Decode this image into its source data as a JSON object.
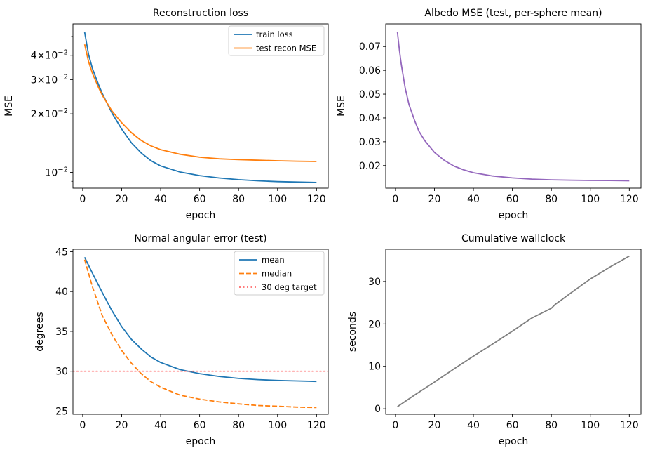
{
  "chart_data": [
    {
      "type": "line",
      "title": "Reconstruction loss",
      "xlabel": "epoch",
      "ylabel": "MSE",
      "yscale": "log",
      "xlim": [
        -5,
        126
      ],
      "ylim": [
        0.0083,
        0.058
      ],
      "xticks": [
        0,
        20,
        40,
        60,
        80,
        100,
        120
      ],
      "yticks": [
        0.01,
        0.02,
        0.03,
        0.04
      ],
      "ytick_labels": [
        "10^{-2}",
        "2×10^{-2}",
        "3×10^{-2}",
        "4×10^{-2}"
      ],
      "legend": "top-right",
      "series": [
        {
          "name": "train loss",
          "color": "#1f77b4",
          "style": "solid",
          "x": [
            1,
            3,
            5,
            8,
            10,
            15,
            20,
            25,
            30,
            35,
            40,
            50,
            60,
            70,
            80,
            90,
            100,
            110,
            120
          ],
          "y": [
            0.0525,
            0.0405,
            0.0342,
            0.0285,
            0.0255,
            0.0202,
            0.0167,
            0.0142,
            0.0126,
            0.0115,
            0.0108,
            0.01005,
            0.00963,
            0.00936,
            0.00918,
            0.00906,
            0.00897,
            0.00892,
            0.00888
          ]
        },
        {
          "name": "test recon MSE",
          "color": "#ff7f0e",
          "style": "solid",
          "x": [
            1,
            3,
            5,
            8,
            10,
            15,
            20,
            25,
            30,
            35,
            40,
            50,
            60,
            70,
            80,
            90,
            100,
            110,
            120
          ],
          "y": [
            0.0455,
            0.0372,
            0.0323,
            0.0275,
            0.025,
            0.0207,
            0.018,
            0.016,
            0.0146,
            0.0137,
            0.0131,
            0.0124,
            0.01197,
            0.01175,
            0.01163,
            0.01155,
            0.01148,
            0.01142,
            0.01138
          ]
        }
      ]
    },
    {
      "type": "line",
      "title": "Albedo MSE (test, per-sphere mean)",
      "xlabel": "epoch",
      "ylabel": "MSE",
      "xlim": [
        -5,
        126
      ],
      "ylim": [
        0.0105,
        0.0795
      ],
      "xticks": [
        0,
        20,
        40,
        60,
        80,
        100,
        120
      ],
      "yticks": [
        0.02,
        0.03,
        0.04,
        0.05,
        0.06,
        0.07
      ],
      "ytick_labels": [
        "0.02",
        "0.03",
        "0.04",
        "0.05",
        "0.06",
        "0.07"
      ],
      "series": [
        {
          "color": "#9467bd",
          "style": "solid",
          "x": [
            1,
            2,
            3,
            5,
            7,
            10,
            12,
            15,
            20,
            25,
            30,
            35,
            40,
            50,
            60,
            70,
            80,
            90,
            100,
            110,
            120
          ],
          "y": [
            0.076,
            0.0685,
            0.0625,
            0.0525,
            0.0455,
            0.0385,
            0.0345,
            0.0305,
            0.0255,
            0.0222,
            0.0198,
            0.0182,
            0.017,
            0.0156,
            0.0148,
            0.0143,
            0.014,
            0.01385,
            0.01375,
            0.0137,
            0.0136
          ]
        }
      ]
    },
    {
      "type": "line",
      "title": "Normal angular error (test)",
      "xlabel": "epoch",
      "ylabel": "degrees",
      "xlim": [
        -5,
        126
      ],
      "ylim": [
        24.6,
        45.3
      ],
      "xticks": [
        0,
        20,
        40,
        60,
        80,
        100,
        120
      ],
      "yticks": [
        25,
        30,
        35,
        40,
        45
      ],
      "ytick_labels": [
        "25",
        "30",
        "35",
        "40",
        "45"
      ],
      "legend": "top-right",
      "series": [
        {
          "name": "mean",
          "color": "#1f77b4",
          "style": "solid",
          "x": [
            1,
            5,
            10,
            15,
            20,
            25,
            30,
            35,
            40,
            50,
            60,
            70,
            80,
            90,
            100,
            110,
            120
          ],
          "y": [
            44.3,
            42.3,
            39.9,
            37.6,
            35.6,
            34.0,
            32.8,
            31.8,
            31.1,
            30.2,
            29.7,
            29.35,
            29.1,
            28.95,
            28.85,
            28.78,
            28.72
          ]
        },
        {
          "name": "median",
          "color": "#ff7f0e",
          "style": "dashed",
          "x": [
            1,
            5,
            10,
            15,
            20,
            25,
            30,
            35,
            40,
            50,
            60,
            70,
            80,
            90,
            100,
            110,
            120
          ],
          "y": [
            44.0,
            40.6,
            37.0,
            34.6,
            32.6,
            31.0,
            29.7,
            28.7,
            28.0,
            27.0,
            26.5,
            26.15,
            25.9,
            25.7,
            25.6,
            25.5,
            25.45
          ]
        },
        {
          "name": "30 deg target",
          "color": "#ff6b6b",
          "style": "dotted",
          "x": [
            -5,
            126
          ],
          "y": [
            30,
            30
          ]
        }
      ]
    },
    {
      "type": "line",
      "title": "Cumulative wallclock",
      "xlabel": "epoch",
      "ylabel": "seconds",
      "xlim": [
        -5,
        126
      ],
      "ylim": [
        -1.3,
        37.6
      ],
      "xticks": [
        0,
        20,
        40,
        60,
        80,
        100,
        120
      ],
      "yticks": [
        0,
        10,
        20,
        30
      ],
      "ytick_labels": [
        "0",
        "10",
        "20",
        "30"
      ],
      "series": [
        {
          "color": "#7f7f7f",
          "style": "solid",
          "x": [
            1,
            10,
            20,
            30,
            40,
            50,
            60,
            70,
            80,
            82,
            85,
            90,
            100,
            110,
            120
          ],
          "y": [
            0.5,
            3.3,
            6.3,
            9.4,
            12.4,
            15.3,
            18.3,
            21.4,
            23.7,
            24.6,
            25.6,
            27.3,
            30.6,
            33.4,
            36.0
          ]
        }
      ]
    }
  ]
}
